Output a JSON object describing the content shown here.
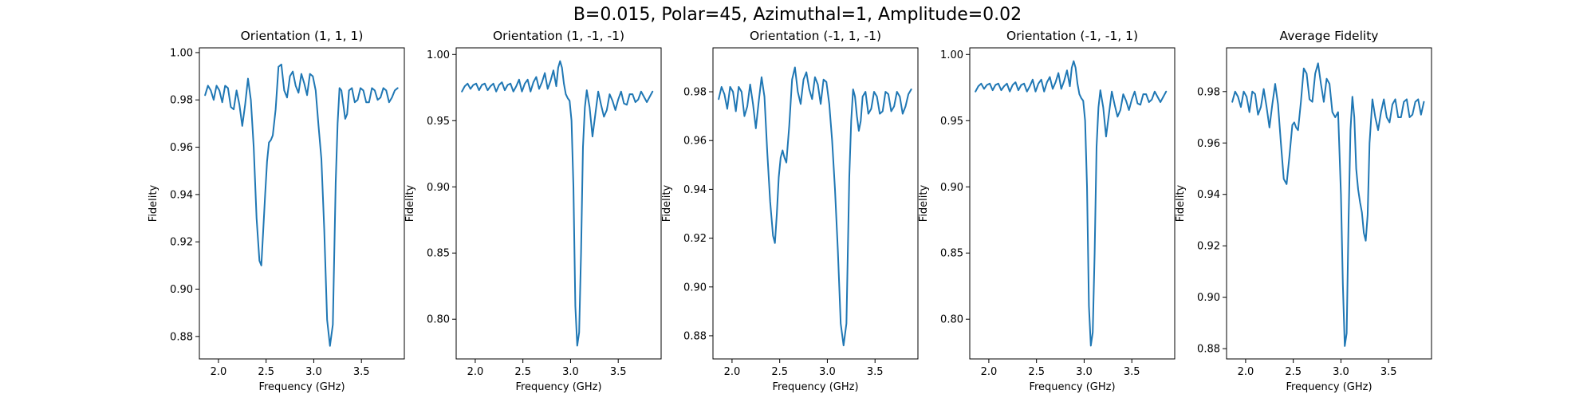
{
  "figure": {
    "suptitle": "B=0.015, Polar=45, Azimuthal=1, Amplitude=0.02"
  },
  "chart_data": [
    {
      "type": "line",
      "title": "Orientation (1, 1, 1)",
      "xlabel": "Frequency (GHz)",
      "ylabel": "Fidelity",
      "xlim": [
        1.8,
        3.95
      ],
      "ylim": [
        0.8705,
        1.002
      ],
      "xticks": [
        2.0,
        2.5,
        3.0,
        3.5
      ],
      "yticks": [
        0.88,
        0.9,
        0.92,
        0.94,
        0.96,
        0.98,
        1.0
      ],
      "ytick_decimals": 2,
      "line_color": "#1f77b4",
      "series": [
        {
          "x": [
            1.86,
            1.89,
            1.92,
            1.95,
            1.98,
            2.01,
            2.04,
            2.07,
            2.1,
            2.13,
            2.16,
            2.19,
            2.22,
            2.25,
            2.28,
            2.31,
            2.34,
            2.37,
            2.4,
            2.43,
            2.45,
            2.47,
            2.49,
            2.51,
            2.53,
            2.55,
            2.57,
            2.6,
            2.63,
            2.66,
            2.69,
            2.72,
            2.75,
            2.78,
            2.81,
            2.84,
            2.87,
            2.9,
            2.93,
            2.96,
            2.99,
            3.02,
            3.05,
            3.08,
            3.11,
            3.14,
            3.17,
            3.2,
            3.23,
            3.25,
            3.27,
            3.29,
            3.31,
            3.33,
            3.35,
            3.37,
            3.4,
            3.43,
            3.46,
            3.49,
            3.52,
            3.55,
            3.58,
            3.61,
            3.64,
            3.67,
            3.7,
            3.73,
            3.76,
            3.79,
            3.82,
            3.85,
            3.88
          ],
          "y": [
            0.982,
            0.986,
            0.984,
            0.98,
            0.986,
            0.984,
            0.979,
            0.986,
            0.985,
            0.977,
            0.976,
            0.984,
            0.978,
            0.969,
            0.978,
            0.989,
            0.98,
            0.96,
            0.93,
            0.912,
            0.91,
            0.925,
            0.94,
            0.954,
            0.962,
            0.963,
            0.965,
            0.976,
            0.994,
            0.995,
            0.984,
            0.981,
            0.99,
            0.992,
            0.986,
            0.983,
            0.991,
            0.987,
            0.982,
            0.991,
            0.99,
            0.984,
            0.969,
            0.955,
            0.925,
            0.887,
            0.876,
            0.885,
            0.945,
            0.97,
            0.985,
            0.984,
            0.978,
            0.972,
            0.974,
            0.984,
            0.985,
            0.979,
            0.98,
            0.985,
            0.984,
            0.979,
            0.979,
            0.985,
            0.984,
            0.98,
            0.981,
            0.985,
            0.984,
            0.979,
            0.981,
            0.984,
            0.985
          ]
        }
      ]
    },
    {
      "type": "line",
      "title": "Orientation (1, -1, -1)",
      "xlabel": "Frequency (GHz)",
      "ylabel": "Fidelity",
      "xlim": [
        1.8,
        3.95
      ],
      "ylim": [
        0.77,
        1.005
      ],
      "xticks": [
        2.0,
        2.5,
        3.0,
        3.5
      ],
      "yticks": [
        0.8,
        0.85,
        0.9,
        0.95,
        1.0
      ],
      "ytick_decimals": 2,
      "line_color": "#1f77b4",
      "series": [
        {
          "x": [
            1.86,
            1.89,
            1.92,
            1.95,
            1.98,
            2.01,
            2.04,
            2.07,
            2.1,
            2.13,
            2.16,
            2.19,
            2.22,
            2.25,
            2.28,
            2.31,
            2.34,
            2.37,
            2.4,
            2.43,
            2.46,
            2.49,
            2.52,
            2.55,
            2.58,
            2.61,
            2.64,
            2.67,
            2.7,
            2.73,
            2.76,
            2.79,
            2.82,
            2.85,
            2.87,
            2.89,
            2.91,
            2.93,
            2.95,
            2.97,
            2.99,
            3.01,
            3.03,
            3.05,
            3.07,
            3.09,
            3.11,
            3.13,
            3.15,
            3.17,
            3.2,
            3.23,
            3.26,
            3.29,
            3.32,
            3.35,
            3.38,
            3.41,
            3.44,
            3.47,
            3.5,
            3.53,
            3.56,
            3.59,
            3.62,
            3.65,
            3.68,
            3.71,
            3.74,
            3.77,
            3.8,
            3.83,
            3.86
          ],
          "y": [
            0.972,
            0.976,
            0.978,
            0.974,
            0.977,
            0.978,
            0.973,
            0.977,
            0.978,
            0.973,
            0.976,
            0.978,
            0.972,
            0.977,
            0.979,
            0.973,
            0.977,
            0.978,
            0.972,
            0.976,
            0.981,
            0.972,
            0.978,
            0.981,
            0.972,
            0.979,
            0.983,
            0.974,
            0.979,
            0.986,
            0.974,
            0.98,
            0.988,
            0.976,
            0.99,
            0.995,
            0.99,
            0.978,
            0.97,
            0.967,
            0.965,
            0.95,
            0.9,
            0.81,
            0.78,
            0.79,
            0.85,
            0.93,
            0.96,
            0.973,
            0.96,
            0.938,
            0.955,
            0.972,
            0.962,
            0.953,
            0.958,
            0.97,
            0.965,
            0.958,
            0.966,
            0.972,
            0.963,
            0.962,
            0.97,
            0.97,
            0.964,
            0.966,
            0.972,
            0.968,
            0.964,
            0.968,
            0.972
          ]
        }
      ]
    },
    {
      "type": "line",
      "title": "Orientation (-1, 1, -1)",
      "xlabel": "Frequency (GHz)",
      "ylabel": "Fidelity",
      "xlim": [
        1.8,
        3.95
      ],
      "ylim": [
        0.8705,
        0.998
      ],
      "xticks": [
        2.0,
        2.5,
        3.0,
        3.5
      ],
      "yticks": [
        0.88,
        0.9,
        0.92,
        0.94,
        0.96,
        0.98
      ],
      "ytick_decimals": 2,
      "line_color": "#1f77b4",
      "series": [
        {
          "x": [
            1.86,
            1.89,
            1.92,
            1.95,
            1.98,
            2.01,
            2.04,
            2.07,
            2.1,
            2.13,
            2.16,
            2.19,
            2.22,
            2.25,
            2.28,
            2.31,
            2.34,
            2.37,
            2.4,
            2.43,
            2.45,
            2.47,
            2.49,
            2.51,
            2.53,
            2.55,
            2.57,
            2.6,
            2.63,
            2.66,
            2.69,
            2.72,
            2.75,
            2.78,
            2.81,
            2.84,
            2.87,
            2.9,
            2.93,
            2.96,
            2.99,
            3.02,
            3.05,
            3.08,
            3.11,
            3.14,
            3.17,
            3.2,
            3.23,
            3.25,
            3.27,
            3.29,
            3.31,
            3.33,
            3.35,
            3.37,
            3.4,
            3.43,
            3.46,
            3.49,
            3.52,
            3.55,
            3.58,
            3.61,
            3.64,
            3.67,
            3.7,
            3.73,
            3.76,
            3.79,
            3.82,
            3.85,
            3.88
          ],
          "y": [
            0.977,
            0.982,
            0.979,
            0.973,
            0.982,
            0.98,
            0.972,
            0.982,
            0.98,
            0.97,
            0.974,
            0.983,
            0.975,
            0.965,
            0.976,
            0.986,
            0.978,
            0.955,
            0.935,
            0.921,
            0.918,
            0.93,
            0.945,
            0.953,
            0.956,
            0.953,
            0.951,
            0.966,
            0.985,
            0.99,
            0.98,
            0.975,
            0.985,
            0.988,
            0.981,
            0.977,
            0.986,
            0.983,
            0.975,
            0.985,
            0.984,
            0.975,
            0.96,
            0.94,
            0.915,
            0.885,
            0.876,
            0.885,
            0.945,
            0.968,
            0.981,
            0.978,
            0.97,
            0.964,
            0.968,
            0.978,
            0.98,
            0.971,
            0.973,
            0.98,
            0.978,
            0.971,
            0.972,
            0.98,
            0.979,
            0.972,
            0.974,
            0.98,
            0.978,
            0.971,
            0.974,
            0.979,
            0.981
          ]
        }
      ]
    },
    {
      "type": "line",
      "title": "Orientation (-1, -1, 1)",
      "xlabel": "Frequency (GHz)",
      "ylabel": "Fidelity",
      "xlim": [
        1.8,
        3.95
      ],
      "ylim": [
        0.77,
        1.005
      ],
      "xticks": [
        2.0,
        2.5,
        3.0,
        3.5
      ],
      "yticks": [
        0.8,
        0.85,
        0.9,
        0.95,
        1.0
      ],
      "ytick_decimals": 2,
      "line_color": "#1f77b4",
      "series": [
        {
          "x": [
            1.86,
            1.89,
            1.92,
            1.95,
            1.98,
            2.01,
            2.04,
            2.07,
            2.1,
            2.13,
            2.16,
            2.19,
            2.22,
            2.25,
            2.28,
            2.31,
            2.34,
            2.37,
            2.4,
            2.43,
            2.46,
            2.49,
            2.52,
            2.55,
            2.58,
            2.61,
            2.64,
            2.67,
            2.7,
            2.73,
            2.76,
            2.79,
            2.82,
            2.85,
            2.87,
            2.89,
            2.91,
            2.93,
            2.95,
            2.97,
            2.99,
            3.01,
            3.03,
            3.05,
            3.07,
            3.09,
            3.11,
            3.13,
            3.15,
            3.17,
            3.2,
            3.23,
            3.26,
            3.29,
            3.32,
            3.35,
            3.38,
            3.41,
            3.44,
            3.47,
            3.5,
            3.53,
            3.56,
            3.59,
            3.62,
            3.65,
            3.68,
            3.71,
            3.74,
            3.77,
            3.8,
            3.83,
            3.86
          ],
          "y": [
            0.972,
            0.976,
            0.978,
            0.974,
            0.977,
            0.978,
            0.973,
            0.977,
            0.978,
            0.973,
            0.976,
            0.978,
            0.972,
            0.977,
            0.979,
            0.973,
            0.977,
            0.978,
            0.972,
            0.976,
            0.981,
            0.972,
            0.978,
            0.981,
            0.972,
            0.979,
            0.983,
            0.974,
            0.979,
            0.986,
            0.974,
            0.98,
            0.988,
            0.976,
            0.99,
            0.995,
            0.99,
            0.978,
            0.97,
            0.967,
            0.965,
            0.95,
            0.9,
            0.81,
            0.78,
            0.79,
            0.85,
            0.93,
            0.96,
            0.973,
            0.96,
            0.938,
            0.955,
            0.972,
            0.962,
            0.953,
            0.958,
            0.97,
            0.965,
            0.958,
            0.966,
            0.972,
            0.963,
            0.962,
            0.97,
            0.97,
            0.964,
            0.966,
            0.972,
            0.968,
            0.964,
            0.968,
            0.972
          ]
        }
      ]
    },
    {
      "type": "line",
      "title": "Average Fidelity",
      "xlabel": "Frequency (GHz)",
      "ylabel": "Fidelity",
      "xlim": [
        1.8,
        3.95
      ],
      "ylim": [
        0.876,
        0.997
      ],
      "xticks": [
        2.0,
        2.5,
        3.0,
        3.5
      ],
      "yticks": [
        0.88,
        0.9,
        0.92,
        0.94,
        0.96,
        0.98
      ],
      "ytick_decimals": 2,
      "line_color": "#1f77b4",
      "series": [
        {
          "x": [
            1.86,
            1.89,
            1.92,
            1.95,
            1.98,
            2.01,
            2.04,
            2.07,
            2.1,
            2.13,
            2.16,
            2.19,
            2.22,
            2.25,
            2.28,
            2.31,
            2.34,
            2.37,
            2.4,
            2.43,
            2.46,
            2.49,
            2.51,
            2.53,
            2.55,
            2.58,
            2.61,
            2.64,
            2.67,
            2.7,
            2.73,
            2.76,
            2.79,
            2.82,
            2.85,
            2.88,
            2.91,
            2.94,
            2.97,
            3.0,
            3.02,
            3.04,
            3.06,
            3.08,
            3.1,
            3.12,
            3.14,
            3.16,
            3.18,
            3.2,
            3.22,
            3.24,
            3.26,
            3.28,
            3.3,
            3.33,
            3.36,
            3.39,
            3.42,
            3.45,
            3.48,
            3.51,
            3.54,
            3.57,
            3.6,
            3.63,
            3.66,
            3.69,
            3.72,
            3.75,
            3.78,
            3.81,
            3.84,
            3.87
          ],
          "y": [
            0.976,
            0.98,
            0.978,
            0.974,
            0.98,
            0.978,
            0.972,
            0.98,
            0.979,
            0.971,
            0.974,
            0.981,
            0.974,
            0.966,
            0.975,
            0.983,
            0.975,
            0.96,
            0.946,
            0.944,
            0.955,
            0.967,
            0.968,
            0.966,
            0.965,
            0.976,
            0.989,
            0.987,
            0.977,
            0.976,
            0.987,
            0.991,
            0.983,
            0.976,
            0.985,
            0.983,
            0.972,
            0.97,
            0.972,
            0.94,
            0.905,
            0.881,
            0.886,
            0.93,
            0.965,
            0.978,
            0.97,
            0.95,
            0.942,
            0.937,
            0.933,
            0.925,
            0.922,
            0.932,
            0.96,
            0.977,
            0.97,
            0.965,
            0.972,
            0.977,
            0.97,
            0.968,
            0.975,
            0.977,
            0.97,
            0.97,
            0.976,
            0.977,
            0.97,
            0.971,
            0.976,
            0.977,
            0.971,
            0.976
          ]
        }
      ]
    }
  ]
}
